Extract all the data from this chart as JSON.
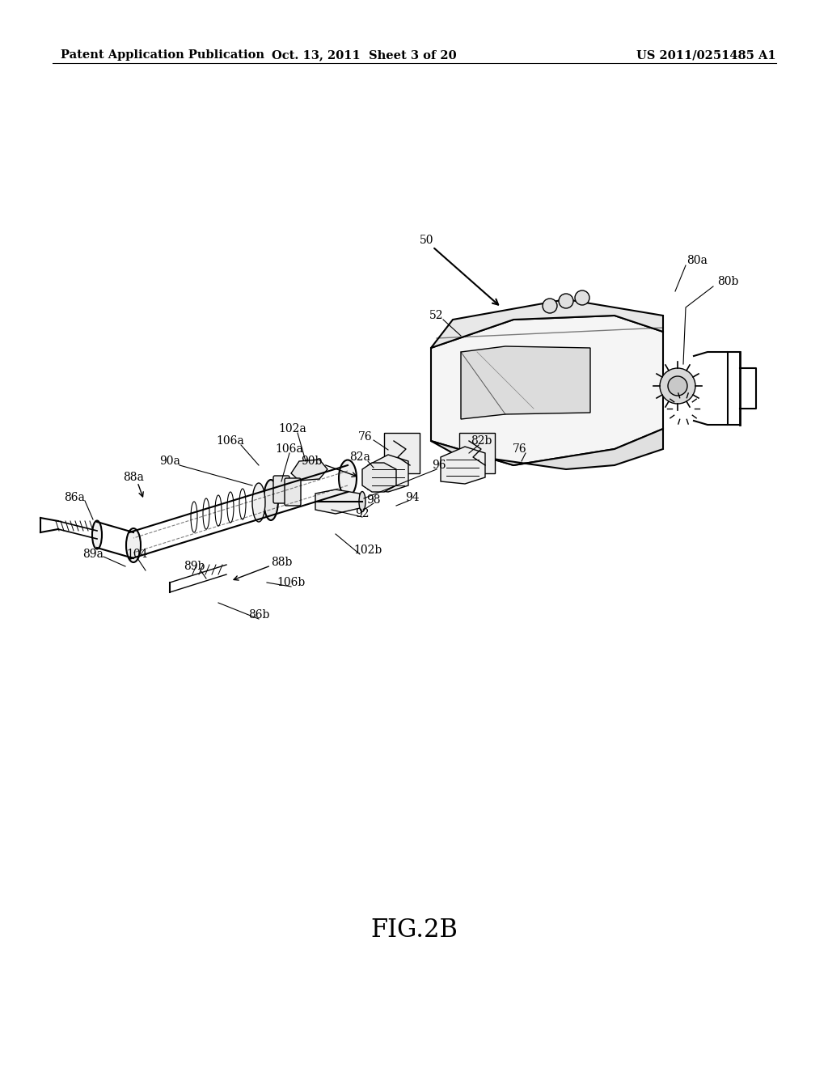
{
  "header_left": "Patent Application Publication",
  "header_center": "Oct. 13, 2011  Sheet 3 of 20",
  "header_right": "US 2011/0251485 A1",
  "figure_label": "FIG.2B",
  "background_color": "#ffffff",
  "text_color": "#000000",
  "header_fontsize": 10.5,
  "figure_label_fontsize": 22,
  "label_fontsize": 10
}
